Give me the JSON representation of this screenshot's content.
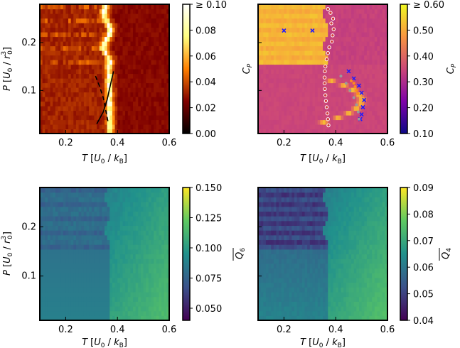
{
  "chart_data": [
    {
      "type": "heatmap",
      "panel": "top-left",
      "xlabel": "T [U_0 / k_B]",
      "ylabel": "P [U_0 / r_0^3]",
      "xlim": [
        0.1,
        0.6
      ],
      "ylim": [
        0.01,
        0.28
      ],
      "xticks": [
        "0.2",
        "0.4",
        "0.6"
      ],
      "yticks": [
        "0.1",
        "0.2"
      ],
      "colormap": "afmhot",
      "colorbar": {
        "label": "C_P",
        "range": [
          0.0,
          0.1
        ],
        "ticks": [
          "0.00",
          "0.02",
          "0.04",
          "0.06",
          "0.08",
          "≥ 0.10"
        ]
      },
      "lines": [
        {
          "style": "dashed",
          "color": "#000000",
          "points": [
            [
              0.315,
              0.13
            ],
            [
              0.33,
              0.11
            ],
            [
              0.345,
              0.085
            ],
            [
              0.355,
              0.058
            ],
            [
              0.365,
              0.03
            ]
          ]
        },
        {
          "style": "solid",
          "color": "#000000",
          "points": [
            [
              0.32,
              0.03
            ],
            [
              0.345,
              0.055
            ],
            [
              0.36,
              0.08
            ],
            [
              0.37,
              0.105
            ],
            [
              0.385,
              0.14
            ]
          ]
        }
      ]
    },
    {
      "type": "heatmap",
      "panel": "top-right",
      "xlabel": "T [U_0 / k_B]",
      "ylabel": "",
      "xlim": [
        0.1,
        0.6
      ],
      "ylim": [
        0.01,
        0.28
      ],
      "xticks": [
        "0.2",
        "0.4",
        "0.6"
      ],
      "colormap": "plasma",
      "colorbar": {
        "label": "C_P",
        "range": [
          0.1,
          0.6
        ],
        "ticks": [
          "0.10",
          "0.20",
          "0.30",
          "0.40",
          "0.50",
          "≥ 0.60"
        ]
      },
      "series": [
        {
          "marker": "open-circle",
          "color": "#ffffff",
          "points": [
            [
              0.37,
              0.27
            ],
            [
              0.38,
              0.262
            ],
            [
              0.39,
              0.25
            ],
            [
              0.383,
              0.24
            ],
            [
              0.392,
              0.228
            ],
            [
              0.388,
              0.215
            ],
            [
              0.385,
              0.202
            ],
            [
              0.375,
              0.19
            ],
            [
              0.37,
              0.178
            ],
            [
              0.365,
              0.165
            ],
            [
              0.36,
              0.15
            ],
            [
              0.358,
              0.14
            ],
            [
              0.357,
              0.127
            ],
            [
              0.357,
              0.115
            ],
            [
              0.358,
              0.103
            ],
            [
              0.36,
              0.09
            ],
            [
              0.362,
              0.078
            ],
            [
              0.365,
              0.065
            ],
            [
              0.368,
              0.052
            ],
            [
              0.37,
              0.04
            ],
            [
              0.372,
              0.027
            ]
          ]
        },
        {
          "marker": "x",
          "color": "#1a1aff",
          "points": [
            [
              0.2,
              0.225
            ],
            [
              0.31,
              0.225
            ],
            [
              0.45,
              0.14
            ],
            [
              0.47,
              0.125
            ],
            [
              0.49,
              0.11
            ],
            [
              0.5,
              0.095
            ],
            [
              0.51,
              0.08
            ],
            [
              0.505,
              0.065
            ],
            [
              0.5,
              0.05
            ],
            [
              0.495,
              0.04
            ]
          ]
        },
        {
          "marker": "dot",
          "color": "#ff8c1a",
          "points": [
            [
              0.46,
              0.12
            ],
            [
              0.47,
              0.115
            ],
            [
              0.475,
              0.108
            ],
            [
              0.48,
              0.1
            ],
            [
              0.485,
              0.093
            ]
          ]
        },
        {
          "marker": "dot",
          "color": "#9a9a9a",
          "points": [
            [
              0.42,
              0.13
            ],
            [
              0.44,
              0.115
            ],
            [
              0.455,
              0.1
            ],
            [
              0.47,
              0.085
            ],
            [
              0.48,
              0.07
            ],
            [
              0.487,
              0.055
            ],
            [
              0.49,
              0.04
            ]
          ]
        }
      ]
    },
    {
      "type": "heatmap",
      "panel": "bottom-left",
      "xlabel": "T [U_0 / k_B]",
      "ylabel": "P [U_0 / r_0^3]",
      "xlim": [
        0.1,
        0.6
      ],
      "ylim": [
        0.01,
        0.28
      ],
      "xticks": [
        "0.2",
        "0.4",
        "0.6"
      ],
      "yticks": [
        "0.1",
        "0.2"
      ],
      "colormap": "viridis",
      "colorbar": {
        "label": "Q̄_6",
        "range": [
          0.04,
          0.15
        ],
        "ticks": [
          "0.050",
          "0.075",
          "0.100",
          "0.125",
          "0.150"
        ]
      }
    },
    {
      "type": "heatmap",
      "panel": "bottom-right",
      "xlabel": "T [U_0 / k_B]",
      "ylabel": "",
      "xlim": [
        0.1,
        0.6
      ],
      "ylim": [
        0.01,
        0.28
      ],
      "xticks": [
        "0.2",
        "0.4",
        "0.6"
      ],
      "colormap": "viridis",
      "colorbar": {
        "label": "Q̄_4",
        "range": [
          0.04,
          0.09
        ],
        "ticks": [
          "0.04",
          "0.05",
          "0.06",
          "0.07",
          "0.08",
          "0.09"
        ]
      }
    }
  ]
}
